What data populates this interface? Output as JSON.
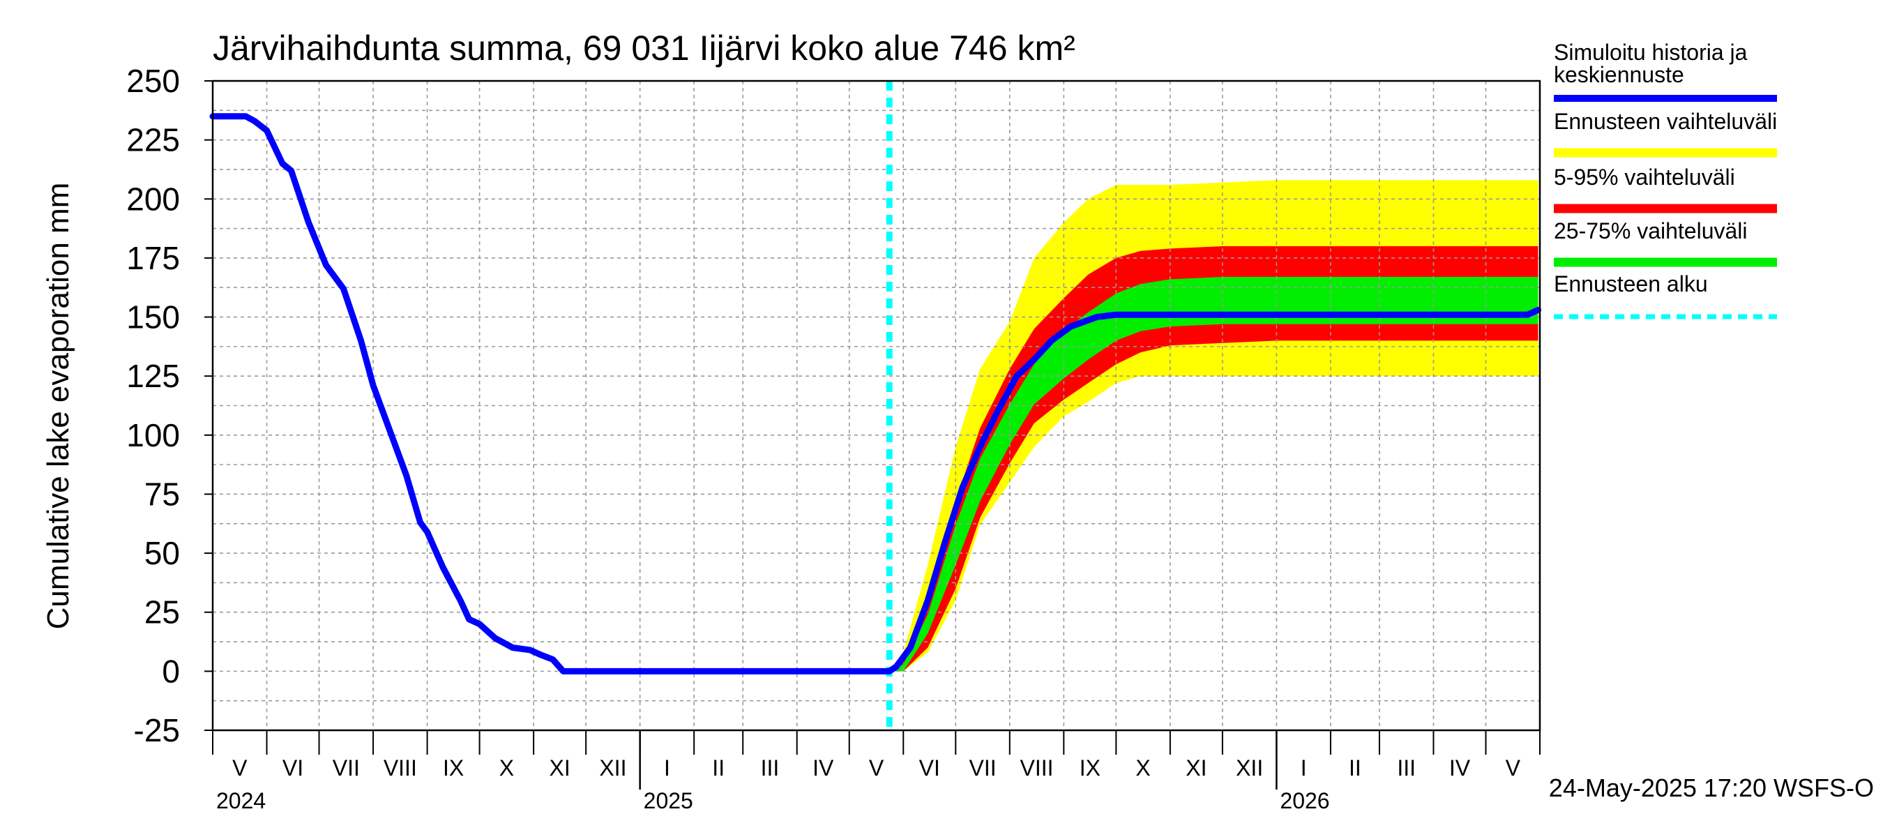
{
  "chart_data": {
    "type": "area",
    "title": "Järvihaihdunta summa, 69 031 Iijärvi koko alue 746 km²",
    "ylabel": "Cumulative lake evaporation   mm",
    "ylim": [
      -25,
      250
    ],
    "yticks": [
      "250",
      "225",
      "200",
      "175",
      "150",
      "125",
      "100",
      "75",
      "50",
      "25",
      "0",
      "-25"
    ],
    "xlim": [
      "2024-05-01",
      "2026-05-31"
    ],
    "month_labels": [
      "V",
      "VI",
      "VII",
      "VIII",
      "IX",
      "X",
      "XI",
      "XII",
      "I",
      "II",
      "III",
      "IV",
      "V",
      "VI",
      "VII",
      "VIII",
      "IX",
      "X",
      "XI",
      "XII",
      "I",
      "II",
      "III",
      "IV",
      "V"
    ],
    "year_labels": [
      "2024",
      "2025",
      "2026"
    ],
    "forecast_start": "2025-05-24",
    "grid": true,
    "legend_position": "right",
    "legend": [
      {
        "label": "Simuloitu historia ja keskiennuste",
        "color": "#0000ff",
        "style": "solid"
      },
      {
        "label": "Ennusteen vaihteluväli",
        "color": "#ffff00",
        "style": "solid"
      },
      {
        "label": "5-95% vaihteluväli",
        "color": "#ff0000",
        "style": "solid"
      },
      {
        "label": "25-75% vaihteluväli",
        "color": "#00ee00",
        "style": "solid"
      },
      {
        "label": "Ennusteen alku",
        "color": "#00ffff",
        "style": "dashed"
      }
    ],
    "series": [
      {
        "name": "Simuloitu historia ja keskiennuste",
        "color": "#0000ff",
        "x": [
          "2024-05-01",
          "2024-05-20",
          "2024-05-25",
          "2024-06-01",
          "2024-06-10",
          "2024-06-15",
          "2024-06-25",
          "2024-07-05",
          "2024-07-15",
          "2024-07-25",
          "2024-08-01",
          "2024-08-10",
          "2024-08-20",
          "2024-08-28",
          "2024-09-01",
          "2024-09-10",
          "2024-09-20",
          "2024-09-25",
          "2024-10-01",
          "2024-10-10",
          "2024-10-20",
          "2024-10-30",
          "2024-11-05",
          "2024-11-12",
          "2024-11-18",
          "2024-12-01",
          "2025-01-01",
          "2025-02-01",
          "2025-03-01",
          "2025-04-01",
          "2025-05-01",
          "2025-05-24",
          "2025-05-28",
          "2025-06-05",
          "2025-06-15",
          "2025-06-25",
          "2025-07-05",
          "2025-07-15",
          "2025-07-25",
          "2025-08-05",
          "2025-08-15",
          "2025-08-25",
          "2025-09-05",
          "2025-09-20",
          "2025-10-01",
          "2025-10-20",
          "2025-11-01",
          "2025-11-15",
          "2025-12-01",
          "2026-01-01",
          "2026-03-01",
          "2026-05-25",
          "2026-05-31"
        ],
        "y": [
          235,
          235,
          233,
          229,
          215,
          212,
          190,
          172,
          162,
          140,
          121,
          103,
          83,
          63,
          59,
          44,
          30,
          22,
          20,
          14,
          10,
          9,
          7,
          5,
          0,
          0,
          0,
          0,
          0,
          0,
          0,
          0,
          2,
          10,
          30,
          55,
          78,
          95,
          110,
          125,
          132,
          140,
          146,
          150,
          151,
          151,
          151,
          151,
          151,
          151,
          151,
          151,
          153
        ]
      },
      {
        "name": "Ennusteen vaihteluväli",
        "color": "#ffff00",
        "x": [
          "2025-05-24",
          "2025-06-01",
          "2025-06-15",
          "2025-07-01",
          "2025-07-15",
          "2025-08-01",
          "2025-08-15",
          "2025-09-01",
          "2025-09-15",
          "2025-10-01",
          "2025-10-15",
          "2025-11-01",
          "2025-12-01",
          "2026-01-01",
          "2026-05-31"
        ],
        "upper": [
          0,
          8,
          45,
          95,
          128,
          148,
          175,
          190,
          200,
          206,
          206,
          206,
          207,
          208,
          208
        ],
        "lower": [
          0,
          0,
          8,
          30,
          62,
          80,
          95,
          108,
          114,
          122,
          125,
          125,
          125,
          125,
          125
        ]
      },
      {
        "name": "5-95% vaihteluväli",
        "color": "#ff0000",
        "x": [
          "2025-05-24",
          "2025-06-01",
          "2025-06-15",
          "2025-07-01",
          "2025-07-15",
          "2025-08-01",
          "2025-08-15",
          "2025-09-01",
          "2025-09-15",
          "2025-10-01",
          "2025-10-15",
          "2025-11-01",
          "2025-12-01",
          "2026-01-01",
          "2026-05-31"
        ],
        "upper": [
          0,
          5,
          30,
          72,
          103,
          128,
          145,
          158,
          168,
          175,
          178,
          179,
          180,
          180,
          180
        ],
        "lower": [
          0,
          0,
          10,
          35,
          65,
          88,
          105,
          115,
          122,
          130,
          135,
          138,
          139,
          140,
          140
        ]
      },
      {
        "name": "25-75% vaihteluväli",
        "color": "#00ee00",
        "x": [
          "2025-05-24",
          "2025-06-01",
          "2025-06-15",
          "2025-07-01",
          "2025-07-15",
          "2025-08-01",
          "2025-08-15",
          "2025-09-01",
          "2025-09-15",
          "2025-10-01",
          "2025-10-15",
          "2025-11-01",
          "2025-12-01",
          "2026-01-01",
          "2026-05-31"
        ],
        "upper": [
          0,
          3,
          24,
          62,
          90,
          113,
          130,
          144,
          152,
          160,
          164,
          166,
          167,
          167,
          167
        ],
        "lower": [
          0,
          0,
          16,
          45,
          72,
          96,
          113,
          124,
          132,
          140,
          144,
          146,
          147,
          147,
          147
        ]
      }
    ]
  },
  "footer": {
    "timestamp": "24-May-2025 17:20 WSFS-O"
  }
}
